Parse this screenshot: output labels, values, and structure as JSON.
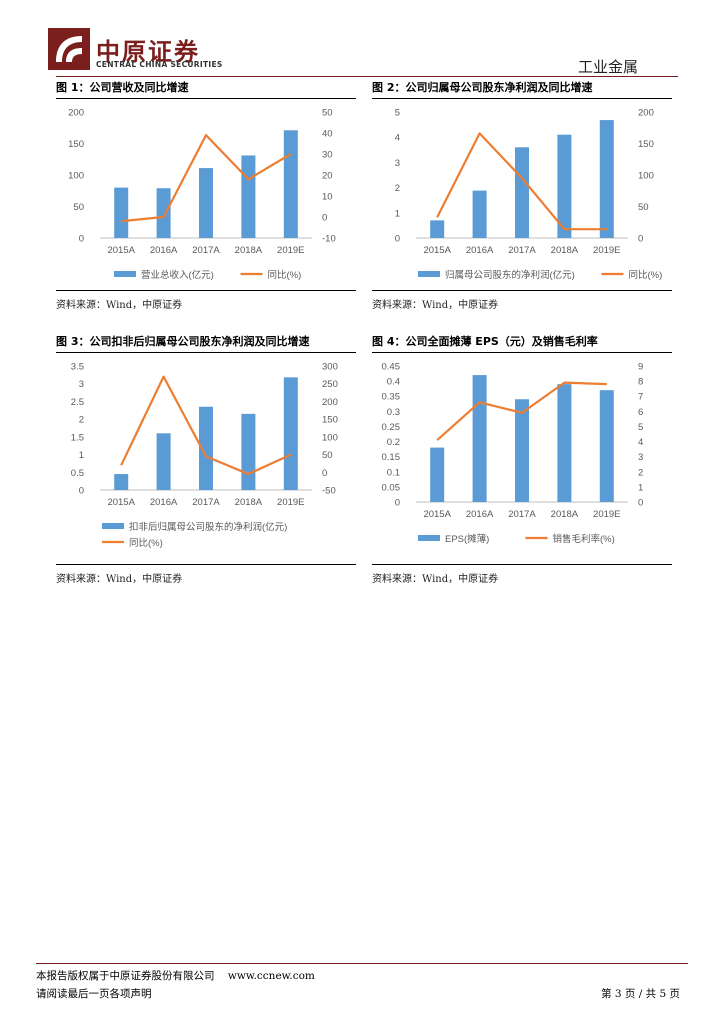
{
  "header": {
    "logo_cn": "中原证券",
    "logo_en": "CENTRAL CHINA SECURITIES",
    "industry": "工业金属",
    "brand_color": "#7a1e1e"
  },
  "colors": {
    "bar": "#5b9bd5",
    "line": "#ed7d31",
    "grid": "#d9d9d9",
    "axis": "#bfbfbf"
  },
  "charts": [
    {
      "title": "图 1：公司营收及同比增速",
      "source": "资料来源：Wind，中原证券",
      "chart_data": {
        "type": "bar",
        "categories": [
          "2015A",
          "2016A",
          "2017A",
          "2018A",
          "2019E"
        ],
        "series": [
          {
            "name": "营业总收入(亿元)",
            "type": "bar",
            "axis": "left",
            "values": [
              80,
              79,
              111,
              131,
              171
            ]
          },
          {
            "name": "同比(%)",
            "type": "line",
            "axis": "right",
            "values": [
              -2,
              0,
              39,
              18,
              30
            ]
          }
        ],
        "y_left": {
          "min": 0,
          "max": 200,
          "step": 50
        },
        "y_right": {
          "min": -10,
          "max": 50,
          "step": 10
        },
        "grid": false,
        "legend": "bottom"
      }
    },
    {
      "title": "图 2：公司归属母公司股东净利润及同比增速",
      "source": "资料来源：Wind，中原证券",
      "chart_data": {
        "type": "bar",
        "categories": [
          "2015A",
          "2016A",
          "2017A",
          "2018A",
          "2019E"
        ],
        "series": [
          {
            "name": "归属母公司股东的净利润(亿元)",
            "type": "bar",
            "axis": "left",
            "values": [
              0.7,
              1.88,
              3.6,
              4.1,
              4.68
            ]
          },
          {
            "name": "同比(%)",
            "type": "line",
            "axis": "right",
            "values": [
              33,
              166,
              95,
              14,
              14
            ]
          }
        ],
        "y_left": {
          "min": 0,
          "max": 5,
          "step": 1
        },
        "y_right": {
          "min": 0,
          "max": 200,
          "step": 50
        },
        "grid": false,
        "legend": "bottom"
      }
    },
    {
      "title": "图 3：公司扣非后归属母公司股东净利润及同比增速",
      "source": "资料来源：Wind，中原证券",
      "chart_data": {
        "type": "bar",
        "categories": [
          "2015A",
          "2016A",
          "2017A",
          "2018A",
          "2019E"
        ],
        "series": [
          {
            "name": "扣非后归属母公司股东的净利润(亿元)",
            "type": "bar",
            "axis": "left",
            "values": [
              0.45,
              1.6,
              2.35,
              2.15,
              3.18
            ]
          },
          {
            "name": "同比(%)",
            "type": "line",
            "axis": "right",
            "values": [
              20,
              270,
              45,
              -5,
              50
            ]
          }
        ],
        "y_left": {
          "min": 0,
          "max": 3.5,
          "step": 0.5
        },
        "y_right": {
          "min": -50,
          "max": 300,
          "step": 50
        },
        "grid": false,
        "legend": "bottom"
      }
    },
    {
      "title": "图 4：公司全面摊薄 EPS（元）及销售毛利率",
      "source": "资料来源：Wind，中原证券",
      "chart_data": {
        "type": "bar",
        "categories": [
          "2015A",
          "2016A",
          "2017A",
          "2018A",
          "2019E"
        ],
        "series": [
          {
            "name": "EPS(摊薄)",
            "type": "bar",
            "axis": "left",
            "values": [
              0.18,
              0.42,
              0.34,
              0.39,
              0.37
            ]
          },
          {
            "name": "销售毛利率(%)",
            "type": "line",
            "axis": "right",
            "values": [
              4.1,
              6.6,
              5.9,
              7.9,
              7.8
            ]
          }
        ],
        "y_left": {
          "min": 0,
          "max": 0.45,
          "step": 0.05
        },
        "y_right": {
          "min": 0,
          "max": 9,
          "step": 1
        },
        "grid": false,
        "legend": "bottom"
      }
    }
  ],
  "footer": {
    "copyright": "本报告版权属于中原证券股份有限公司",
    "website": "www.ccnew.com",
    "disclaimer": "请阅读最后一页各项声明",
    "page_info": "第 3 页 / 共 5 页"
  }
}
